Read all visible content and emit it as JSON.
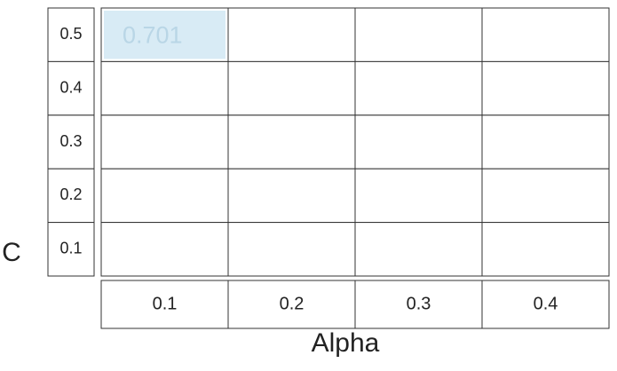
{
  "chart_data": {
    "type": "heatmap",
    "x": [
      0.1,
      0.2,
      0.3,
      0.4
    ],
    "y": [
      0.5,
      0.4,
      0.3,
      0.2,
      0.1
    ],
    "x_tick_labels": [
      "0.1",
      "0.2",
      "0.3",
      "0.4"
    ],
    "y_tick_labels": [
      "0.5",
      "0.4",
      "0.3",
      "0.2",
      "0.1"
    ],
    "xlabel": "Alpha",
    "ylabel": "C",
    "cells": [
      {
        "x": 0.1,
        "y": 0.5,
        "value": 0.701,
        "label": "0.701"
      }
    ],
    "colors": {
      "cell_fill": "#d8ebf5",
      "cell_text": "#b9d6e6",
      "grid": "#333333",
      "tick_text": "#222222"
    }
  }
}
